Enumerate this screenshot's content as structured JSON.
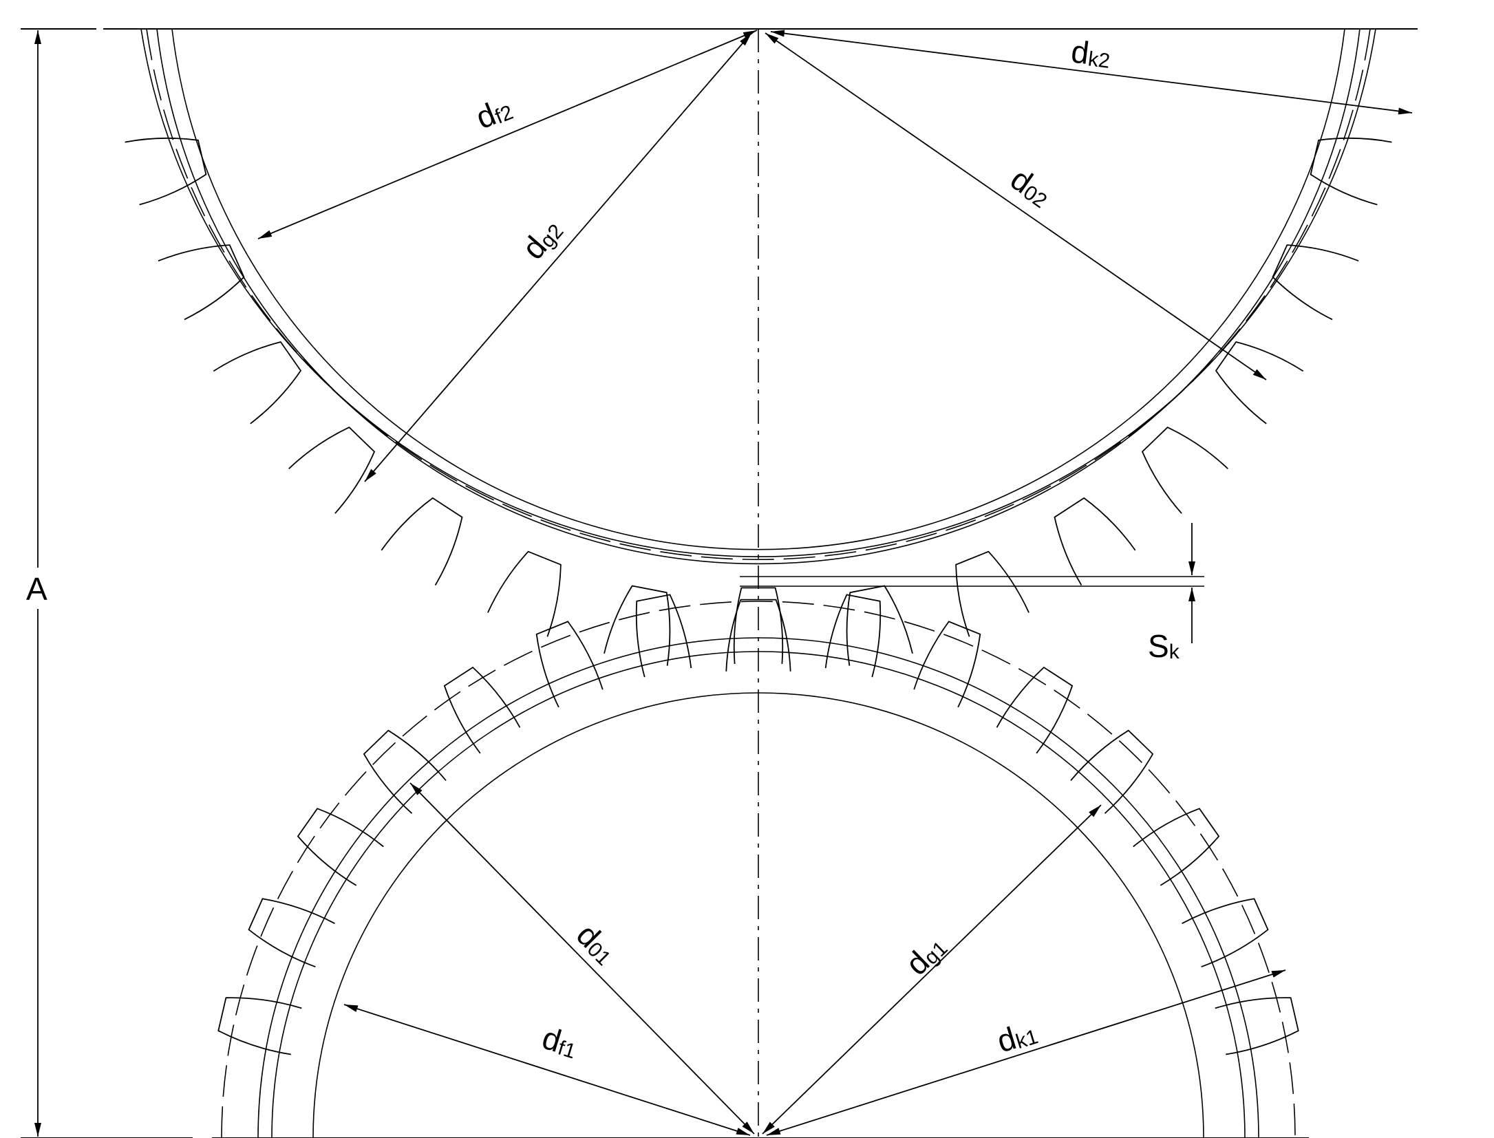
{
  "labels": {
    "df2": {
      "main": "d",
      "sub": "f2"
    },
    "dg2": {
      "main": "d",
      "sub": "g2"
    },
    "d02": {
      "main": "d",
      "sub": "02"
    },
    "dk2": {
      "main": "d",
      "sub": "k2"
    },
    "d01": {
      "main": "d",
      "sub": "01"
    },
    "dg1": {
      "main": "d",
      "sub": "g1"
    },
    "df1": {
      "main": "d",
      "sub": "f1"
    },
    "dk1": {
      "main": "d",
      "sub": "k1"
    },
    "sk": {
      "main": "S",
      "sub": "k"
    },
    "a": {
      "main": "A"
    }
  }
}
